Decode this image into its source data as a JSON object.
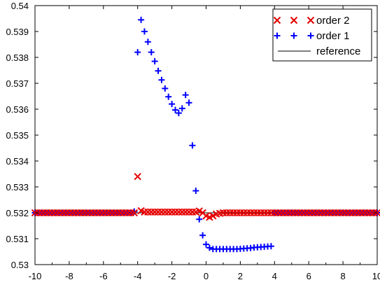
{
  "chart_data": {
    "type": "scatter",
    "title": "",
    "xlabel": "",
    "ylabel": "",
    "xlim": [
      -10,
      10
    ],
    "ylim": [
      0.53,
      0.54
    ],
    "x_ticks": [
      -10,
      -8,
      -6,
      -4,
      -2,
      0,
      2,
      4,
      6,
      8,
      10
    ],
    "x_tick_labels": [
      "-10",
      "-8",
      "-6",
      "-4",
      "-2",
      "0",
      "2",
      "4",
      "6",
      "8",
      "10"
    ],
    "y_ticks": [
      0.53,
      0.531,
      0.532,
      0.533,
      0.534,
      0.535,
      0.536,
      0.537,
      0.538,
      0.539,
      0.54
    ],
    "y_tick_labels": [
      "0.53",
      "0.531",
      "0.532",
      "0.533",
      "0.534",
      "0.535",
      "0.536",
      "0.537",
      "0.538",
      "0.539",
      "0.54"
    ],
    "grid": false,
    "legend": {
      "position": "top-right",
      "entries": [
        {
          "label": "order 2",
          "marker": "x",
          "color": "#e60000"
        },
        {
          "label": "order 1",
          "marker": "+",
          "color": "#0000ff"
        },
        {
          "label": "reference",
          "marker": "line",
          "color": "#000000"
        }
      ]
    },
    "series": [
      {
        "name": "reference",
        "style": "line",
        "color": "#000000",
        "x": [
          -10,
          10
        ],
        "y": [
          0.532,
          0.532
        ]
      },
      {
        "name": "order 1",
        "style": "marker",
        "marker": "+",
        "color": "#0000ff",
        "x": [
          -10,
          -9.8,
          -9.6,
          -9.4,
          -9.2,
          -9,
          -8.8,
          -8.6,
          -8.4,
          -8.2,
          -8,
          -7.8,
          -7.6,
          -7.4,
          -7.2,
          -7,
          -6.8,
          -6.6,
          -6.4,
          -6.2,
          -6,
          -5.8,
          -5.6,
          -5.4,
          -5.2,
          -5,
          -4.8,
          -4.6,
          -4.4,
          -4.2,
          -4.0,
          -3.8,
          -3.6,
          -3.4,
          -3.2,
          -3.0,
          -2.8,
          -2.6,
          -2.4,
          -2.2,
          -2.0,
          -1.8,
          -1.6,
          -1.4,
          -1.2,
          -1.0,
          -0.8,
          -0.6,
          -0.4,
          -0.2,
          0.0,
          0.2,
          0.4,
          0.6,
          0.8,
          1.0,
          1.2,
          1.4,
          1.6,
          1.8,
          2.0,
          2.2,
          2.4,
          2.6,
          2.8,
          3.0,
          3.2,
          3.4,
          3.6,
          3.8,
          4.0,
          4.2,
          4.4,
          4.6,
          4.8,
          5,
          5.2,
          5.4,
          5.6,
          5.8,
          6,
          6.2,
          6.4,
          6.6,
          6.8,
          7,
          7.2,
          7.4,
          7.6,
          7.8,
          8,
          8.2,
          8.4,
          8.6,
          8.8,
          9,
          9.2,
          9.4,
          9.6,
          9.8,
          10
        ],
        "y": [
          0.532,
          0.532,
          0.532,
          0.532,
          0.532,
          0.532,
          0.532,
          0.532,
          0.532,
          0.532,
          0.532,
          0.532,
          0.532,
          0.532,
          0.532,
          0.532,
          0.532,
          0.532,
          0.532,
          0.532,
          0.532,
          0.532,
          0.532,
          0.532,
          0.532,
          0.532,
          0.532,
          0.532,
          0.532,
          0.53205,
          0.5382,
          0.53945,
          0.539,
          0.5386,
          0.5382,
          0.53785,
          0.53748,
          0.53713,
          0.5368,
          0.53648,
          0.5362,
          0.53597,
          0.53585,
          0.53603,
          0.53655,
          0.53625,
          0.5346,
          0.53285,
          0.53175,
          0.53113,
          0.53078,
          0.53065,
          0.5306,
          0.5306,
          0.5306,
          0.5306,
          0.5306,
          0.5306,
          0.5306,
          0.5306,
          0.53061,
          0.53062,
          0.53063,
          0.53064,
          0.53066,
          0.53067,
          0.53068,
          0.53069,
          0.5307,
          0.53071,
          0.532,
          0.532,
          0.532,
          0.532,
          0.532,
          0.532,
          0.532,
          0.532,
          0.532,
          0.532,
          0.532,
          0.532,
          0.532,
          0.532,
          0.532,
          0.532,
          0.532,
          0.532,
          0.532,
          0.532,
          0.532,
          0.532,
          0.532,
          0.532,
          0.532,
          0.532,
          0.532,
          0.532,
          0.532,
          0.532,
          0.532
        ]
      },
      {
        "name": "order 2",
        "style": "marker",
        "marker": "x",
        "color": "#e60000",
        "x": [
          -10,
          -9.8,
          -9.6,
          -9.4,
          -9.2,
          -9,
          -8.8,
          -8.6,
          -8.4,
          -8.2,
          -8,
          -7.8,
          -7.6,
          -7.4,
          -7.2,
          -7,
          -6.8,
          -6.6,
          -6.4,
          -6.2,
          -6,
          -5.8,
          -5.6,
          -5.4,
          -5.2,
          -5,
          -4.8,
          -4.6,
          -4.4,
          -4.2,
          -4.0,
          -3.8,
          -3.6,
          -3.4,
          -3.2,
          -3.0,
          -2.8,
          -2.6,
          -2.4,
          -2.2,
          -2.0,
          -1.8,
          -1.6,
          -1.4,
          -1.2,
          -1.0,
          -0.8,
          -0.6,
          -0.4,
          -0.2,
          0.0,
          0.2,
          0.4,
          0.6,
          0.8,
          1.0,
          1.2,
          1.4,
          1.6,
          1.8,
          2.0,
          2.2,
          2.4,
          2.6,
          2.8,
          3.0,
          3.2,
          3.4,
          3.6,
          3.8,
          4.0,
          4.2,
          4.4,
          4.6,
          4.8,
          5,
          5.2,
          5.4,
          5.6,
          5.8,
          6,
          6.2,
          6.4,
          6.6,
          6.8,
          7,
          7.2,
          7.4,
          7.6,
          7.8,
          8,
          8.2,
          8.4,
          8.6,
          8.8,
          9,
          9.2,
          9.4,
          9.6,
          9.8,
          10
        ],
        "y": [
          0.532,
          0.532,
          0.532,
          0.532,
          0.532,
          0.532,
          0.532,
          0.532,
          0.532,
          0.532,
          0.532,
          0.532,
          0.532,
          0.532,
          0.532,
          0.532,
          0.532,
          0.532,
          0.532,
          0.532,
          0.532,
          0.532,
          0.532,
          0.532,
          0.532,
          0.532,
          0.532,
          0.532,
          0.532,
          0.532,
          0.5334,
          0.53208,
          0.53203,
          0.53203,
          0.53203,
          0.53203,
          0.53203,
          0.53203,
          0.53203,
          0.53203,
          0.53203,
          0.53203,
          0.53203,
          0.53203,
          0.53203,
          0.53203,
          0.53203,
          0.53203,
          0.53207,
          0.532,
          0.53188,
          0.53183,
          0.53188,
          0.53195,
          0.53198,
          0.532,
          0.532,
          0.532,
          0.532,
          0.532,
          0.532,
          0.532,
          0.532,
          0.532,
          0.532,
          0.532,
          0.532,
          0.532,
          0.532,
          0.532,
          0.532,
          0.532,
          0.532,
          0.532,
          0.532,
          0.532,
          0.532,
          0.532,
          0.532,
          0.532,
          0.532,
          0.532,
          0.532,
          0.532,
          0.532,
          0.532,
          0.532,
          0.532,
          0.532,
          0.532,
          0.532,
          0.532,
          0.532,
          0.532,
          0.532,
          0.532,
          0.532,
          0.532,
          0.532,
          0.532,
          0.532
        ]
      }
    ]
  }
}
